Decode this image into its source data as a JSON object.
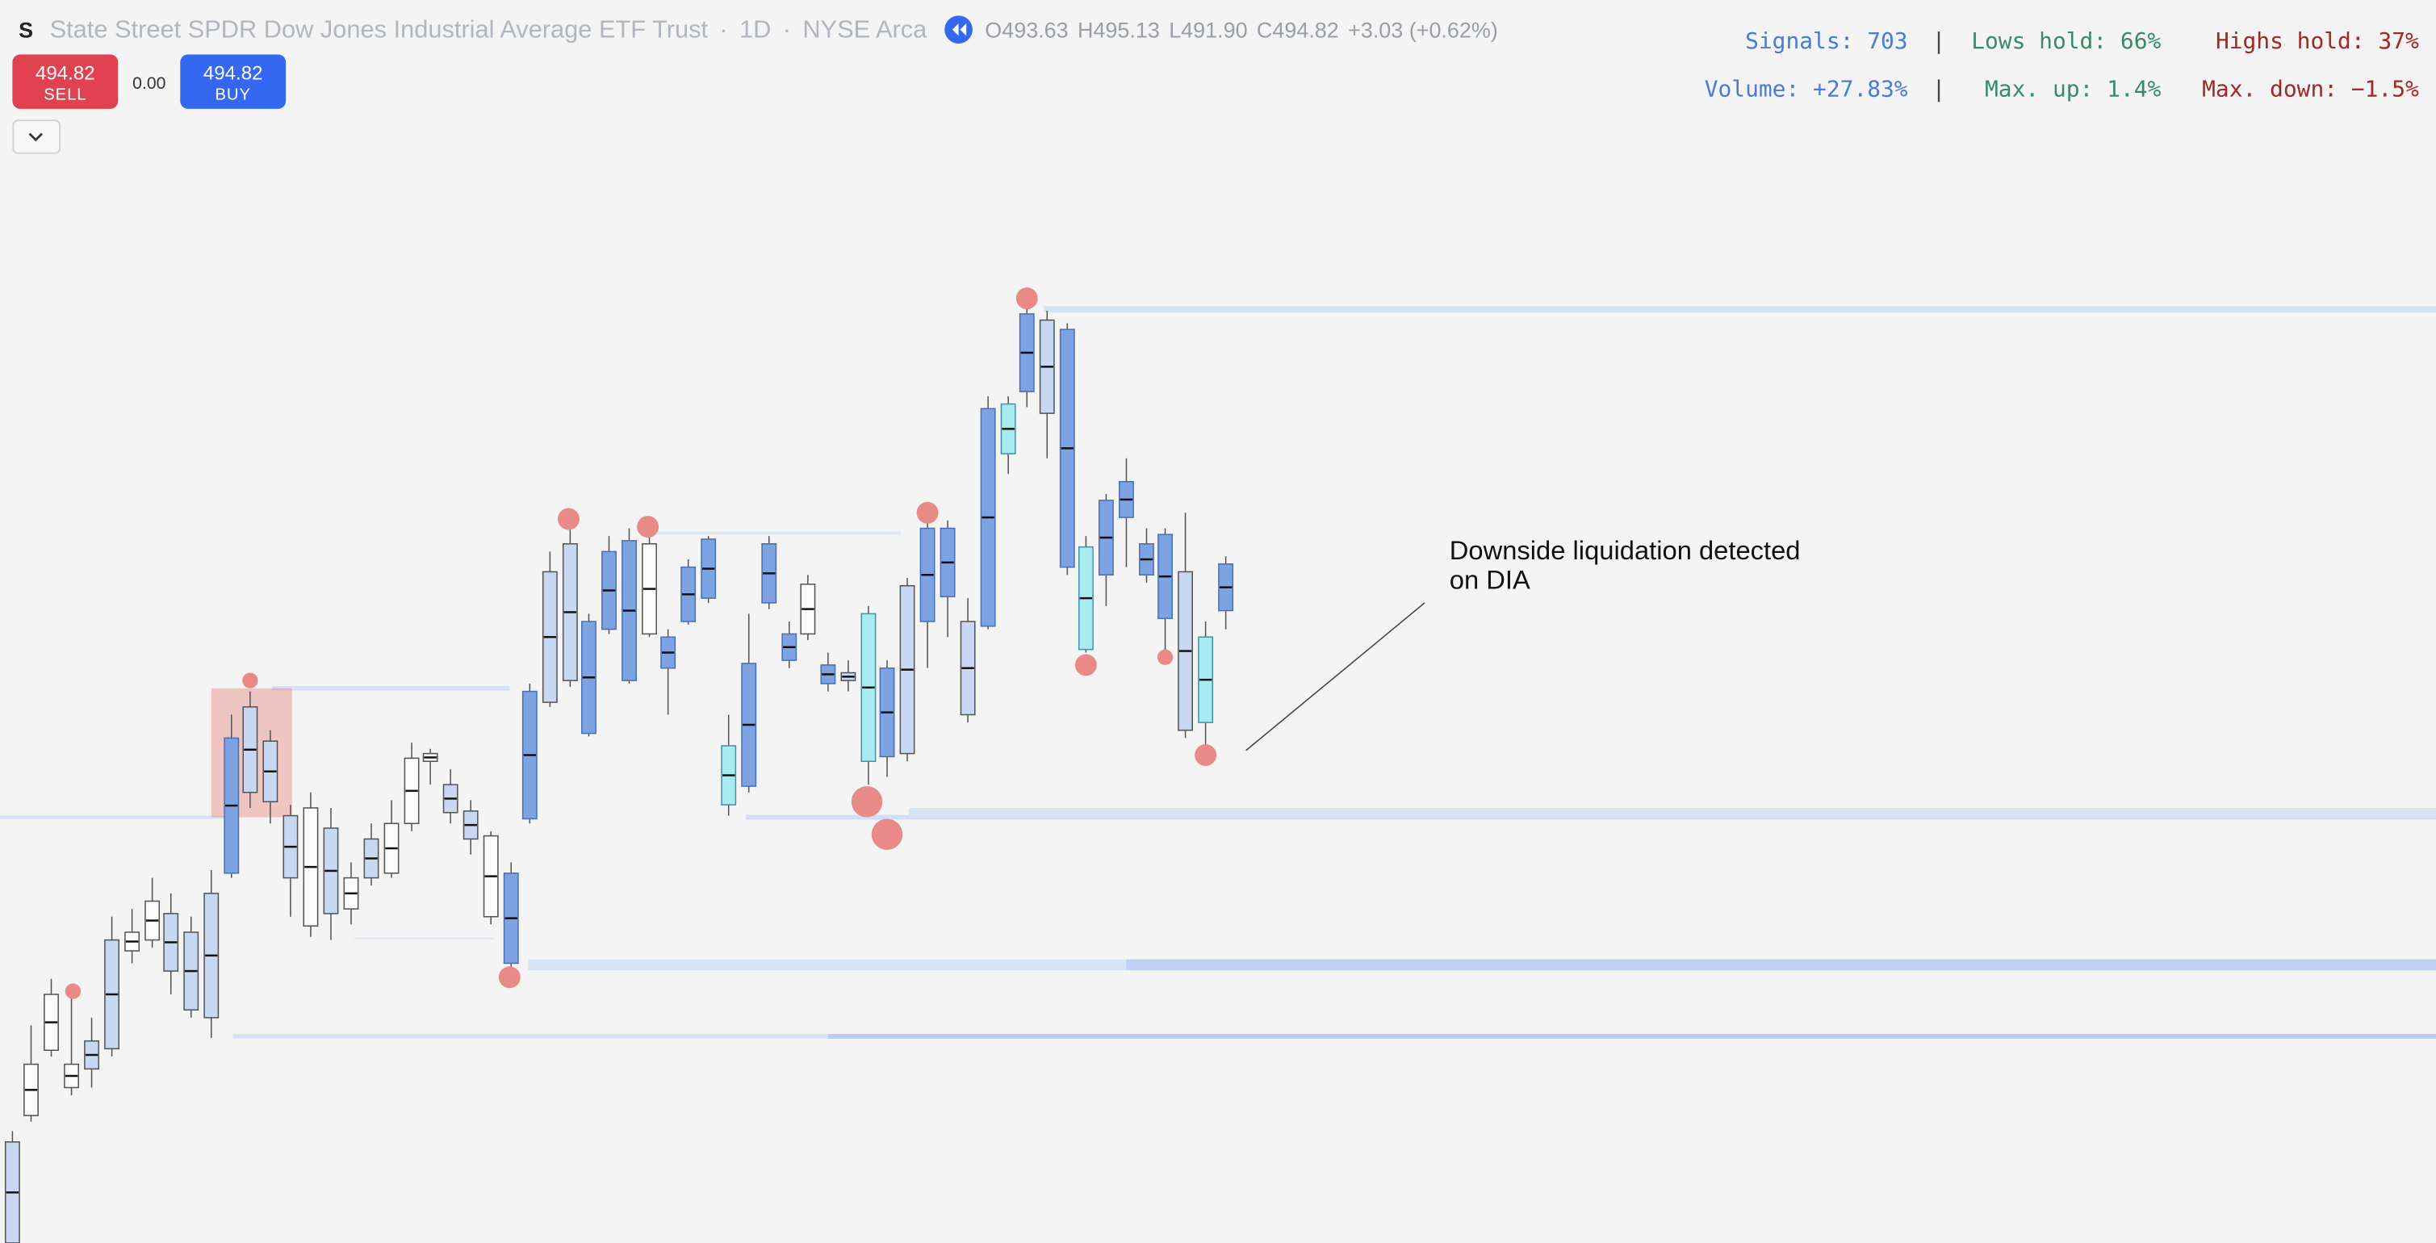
{
  "header": {
    "logo": "S",
    "title": "State Street SPDR Dow Jones Industrial Average ETF Trust",
    "dot": "·",
    "interval": "1D",
    "exchange": "NYSE Arca",
    "ohlc": {
      "open_label": "O",
      "open": "493.63",
      "high_label": "H",
      "high": "495.13",
      "low_label": "L",
      "low": "491.90",
      "close_label": "C",
      "close": "494.82",
      "change": "+3.03 (+0.62%)"
    }
  },
  "trade": {
    "sell_price": "494.82",
    "sell": "SELL",
    "spread": "0.00",
    "buy_price": "494.82",
    "buy": "BUY"
  },
  "stats": {
    "separator": "|",
    "signals": "Signals: 703",
    "lows_hold": "Lows hold: 66%",
    "highs_hold": "Highs hold: 37%",
    "volume": "Volume: +27.83%",
    "max_up": "Max. up: 1.4%",
    "max_down": "Max. down: −1.5%"
  },
  "annotation": {
    "line1": "Downside liquidation detected",
    "line2": "on DIA"
  }
}
